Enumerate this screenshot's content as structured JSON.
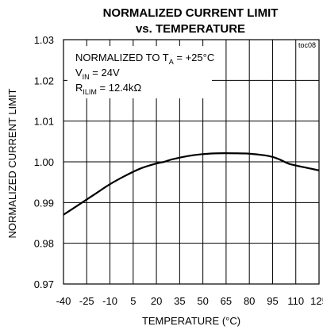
{
  "chart_data": {
    "type": "line",
    "title_line1": "NORMALIZED CURRENT LIMIT",
    "title_line2": "vs. TEMPERATURE",
    "tag": "toc08",
    "xlabel": "TEMPERATURE (°C)",
    "ylabel": "NORMALIZED CURRENT LIMIT",
    "xlim": [
      -40,
      125
    ],
    "ylim": [
      0.97,
      1.03
    ],
    "x_ticks": [
      -40,
      -25,
      -10,
      5,
      20,
      35,
      50,
      65,
      80,
      95,
      110,
      125
    ],
    "y_ticks": [
      "0.97",
      "0.98",
      "0.99",
      "1.00",
      "1.01",
      "1.02",
      "1.03"
    ],
    "grid": true,
    "annotations": {
      "line1_main": "NORMALIZED TO T",
      "line1_sub": "A",
      "line1_tail": " = +25°C",
      "line2_main": "V",
      "line2_sub": "IN",
      "line2_tail": " = 24V",
      "line3_main": "R",
      "line3_sub": "ILIM",
      "line3_tail": " = 12.4kΩ"
    },
    "series": [
      {
        "x": [
          -40,
          -30,
          -20,
          -10,
          0,
          10,
          20,
          25,
          30,
          40,
          50,
          60,
          70,
          80,
          90,
          95,
          100,
          105,
          110,
          115,
          120,
          125
        ],
        "y": [
          0.987,
          0.9895,
          0.992,
          0.9945,
          0.9966,
          0.9984,
          0.9996,
          1.0,
          1.0006,
          1.0014,
          1.0019,
          1.0021,
          1.0021,
          1.002,
          1.0016,
          1.0012,
          1.0005,
          0.9996,
          0.9991,
          0.9987,
          0.9983,
          0.9979
        ]
      }
    ]
  }
}
